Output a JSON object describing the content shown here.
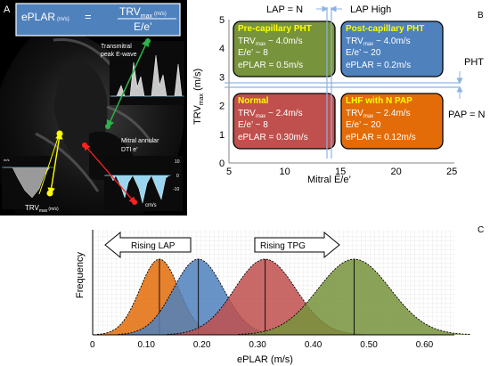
{
  "panel_a": {
    "letter": "A",
    "formula_lhs": "ePLAR",
    "formula_lhs_unit": "(m/s)",
    "formula_eq": "=",
    "formula_num": "TRV",
    "formula_num_sub": "max",
    "formula_num_unit": "(m/s)",
    "formula_den": "E/e’",
    "label_transmitral_1": "Transmitral",
    "label_transmitral_2": "peak E-wave",
    "label_mitral_1": "Mitral annular",
    "label_mitral_2": "DTI  e’",
    "label_trv": "TRV",
    "label_trv_sub": "max",
    "label_trv_unit": "(m/s)",
    "label_cms": "cm/s",
    "scale_10": "10",
    "scale_0": "0",
    "scale_neg10": "-10"
  },
  "panel_b": {
    "letter": "B",
    "lap_n": "LAP = N",
    "lap_high": "LAP High",
    "pht": "PHT",
    "pap_n": "PAP = N",
    "xlabel": "Mitral E/e’",
    "ylabel_main": "TRV",
    "ylabel_sub": "max",
    "ylabel_unit": " (m/s)",
    "xticks": [
      "5",
      "10",
      "15",
      "20",
      "25"
    ],
    "yticks": [
      "0",
      "1",
      "2",
      "3",
      "4",
      "5"
    ],
    "boxes": [
      {
        "title": "Pre-capillary  PHT",
        "trv": "TRV",
        "trv_sub": "max",
        "trv_val": " ~ 4.0m/s",
        "ee": "E/e’ ~ 8",
        "eplar": "ePLAR = 0.5m/s",
        "fill": "#77933c",
        "title_color": "#ffff00"
      },
      {
        "title": "Post-capillary  PHT",
        "trv": "TRV",
        "trv_sub": "max",
        "trv_val": " ~ 4.0m/s",
        "ee": "E/e’ ~ 20",
        "eplar": "ePLAR = 0.2m/s",
        "fill": "#4f81bd",
        "title_color": "#ffff00"
      },
      {
        "title": "Normal",
        "trv": "TRV",
        "trv_sub": "max",
        "trv_val": " ~ 2.4m/s",
        "ee": "E/e’ ~ 8",
        "eplar": "ePLAR = 0.30m/s",
        "fill": "#c0504d",
        "title_color": "#ffff00"
      },
      {
        "title": "LHF with N PAP",
        "trv": "TRV",
        "trv_sub": "max",
        "trv_val": " ~ 2.4m/s",
        "ee": "E/e’ ~ 20",
        "eplar": "ePLAR = 0.12m/s",
        "fill": "#e36c09",
        "title_color": "#ffff00"
      }
    ]
  },
  "panel_c": {
    "letter": "C",
    "rising_lap": "Rising LAP",
    "rising_tpg": "Rising TPG"
  },
  "chart_data": {
    "type": "area",
    "xlabel": "ePLAR (m/s)",
    "ylabel": "Frequency",
    "xlim": [
      0,
      0.65
    ],
    "xticks": [
      "0",
      "0.10",
      "0.20",
      "0.30",
      "0.40",
      "0.50",
      "0.60"
    ],
    "grid": true,
    "series": [
      {
        "color": "#e36c09",
        "mean": 0.12,
        "sd": 0.035,
        "peak": 0.72
      },
      {
        "color": "#4f81bd",
        "mean": 0.19,
        "sd": 0.045,
        "peak": 0.72
      },
      {
        "color": "#c0504d",
        "mean": 0.31,
        "sd": 0.055,
        "peak": 0.72
      },
      {
        "color": "#77933c",
        "mean": 0.47,
        "sd": 0.065,
        "peak": 0.72
      }
    ]
  }
}
